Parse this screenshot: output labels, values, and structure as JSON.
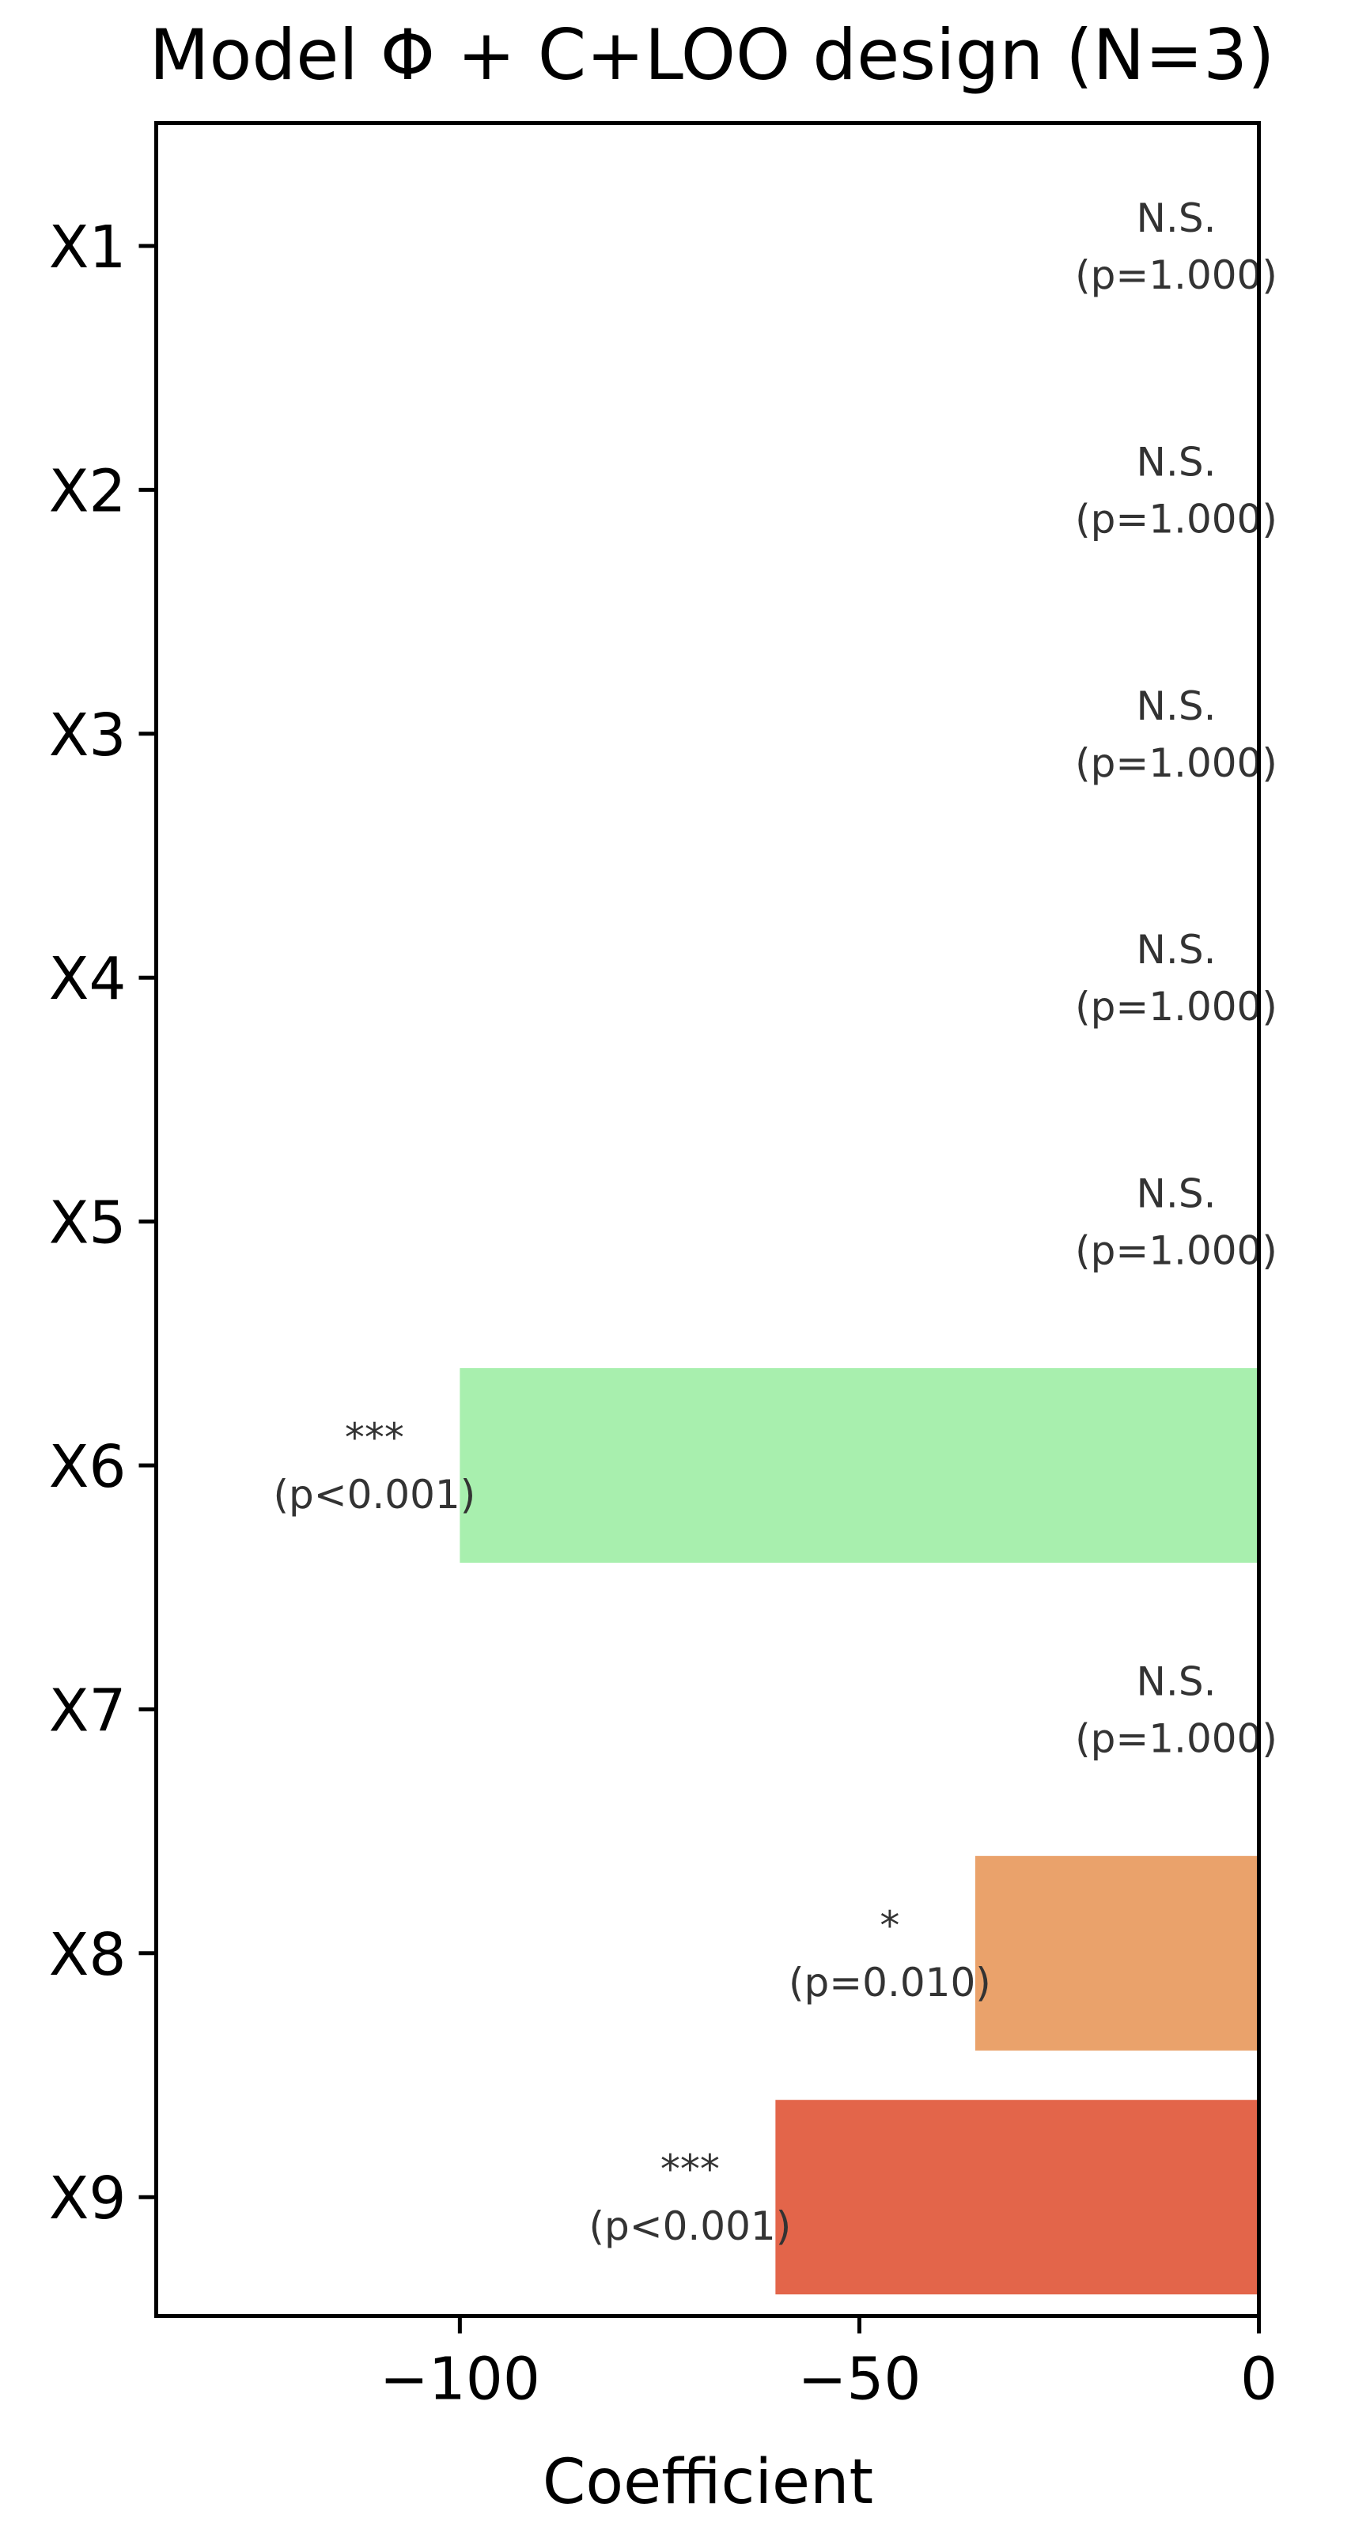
{
  "chart_data": {
    "type": "bar",
    "orientation": "horizontal",
    "title": "Model Φ + C+LOO design (N=3)",
    "xlabel": "Coefficient",
    "ylabel": "",
    "xlim": [
      -138,
      0
    ],
    "xticks": [
      -100,
      -50,
      0
    ],
    "xtick_labels": [
      "−100",
      "−50",
      "0"
    ],
    "categories": [
      "X1",
      "X2",
      "X3",
      "X4",
      "X5",
      "X6",
      "X7",
      "X8",
      "X9"
    ],
    "values": [
      0,
      0,
      0,
      0,
      0,
      -100,
      0,
      -35.5,
      -60.5
    ],
    "colors": [
      "#a8efae",
      "#a8efae",
      "#a8efae",
      "#a8efae",
      "#a8efae",
      "#a8efae",
      "#a8efae",
      "#eaa26b",
      "#e3654a"
    ],
    "significance": [
      "N.S.",
      "N.S.",
      "N.S.",
      "N.S.",
      "N.S.",
      "***",
      "N.S.",
      "*",
      "***"
    ],
    "p_labels": [
      "(p=1.000)",
      "(p=1.000)",
      "(p=1.000)",
      "(p=1.000)",
      "(p=1.000)",
      "(p<0.001)",
      "(p=1.000)",
      "(p=0.010)",
      "(p<0.001)"
    ],
    "grid": false,
    "legend": "none"
  }
}
